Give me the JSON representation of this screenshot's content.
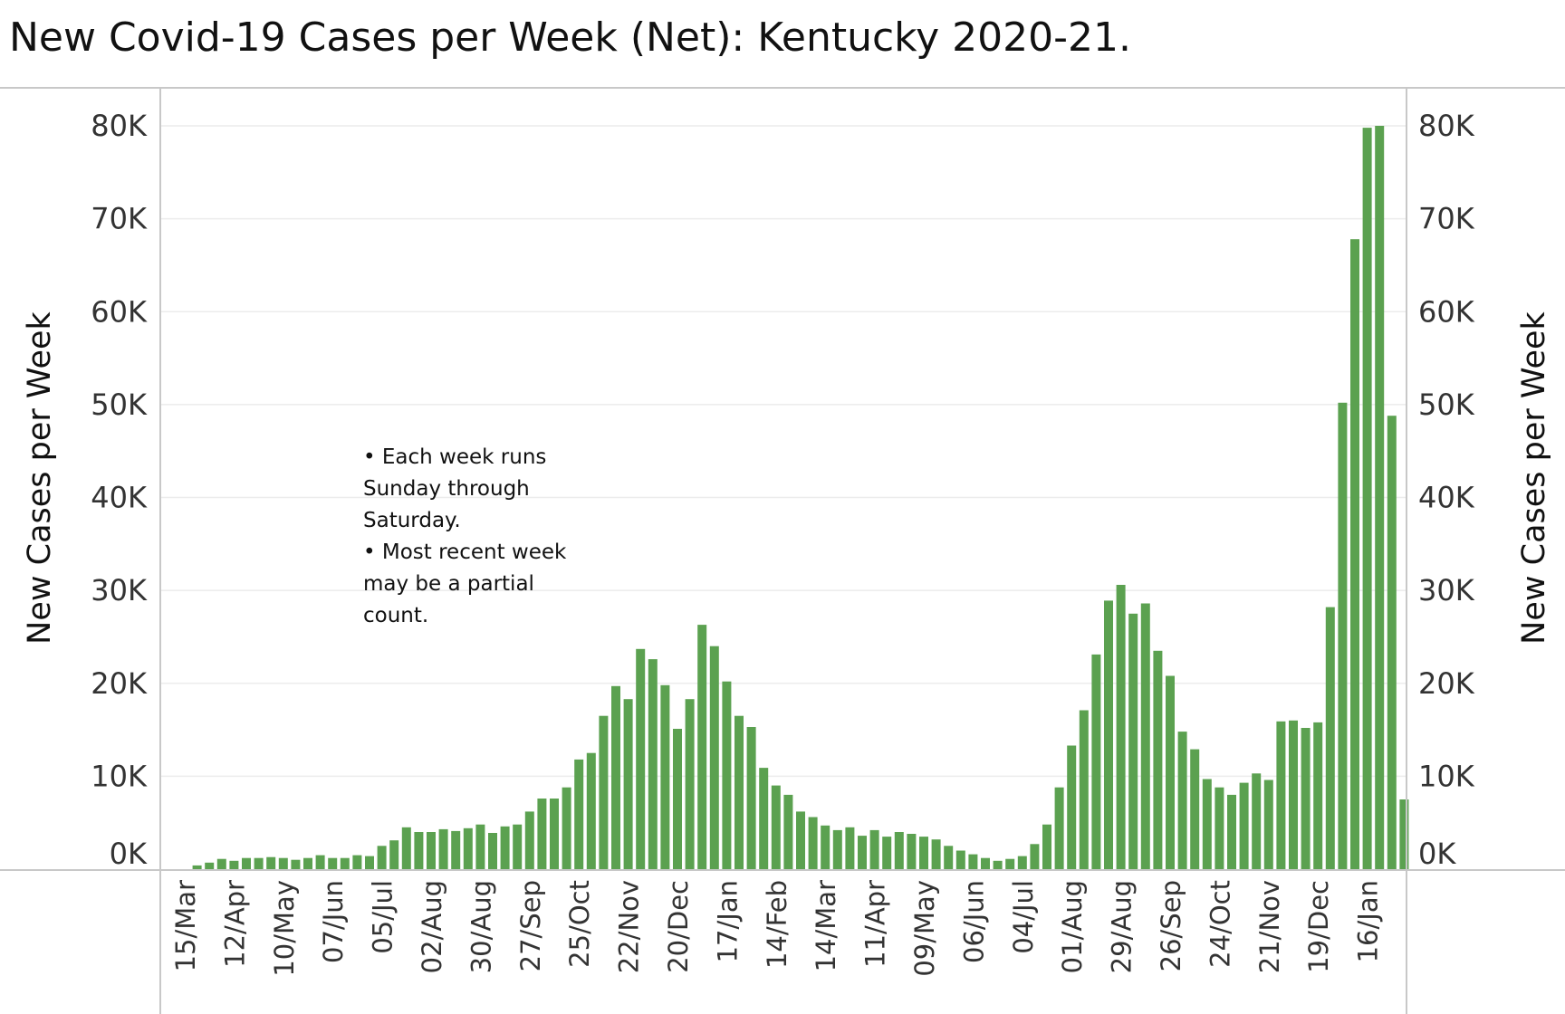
{
  "chart_data": {
    "type": "bar",
    "title": "New Covid-19 Cases per Week (Net):  Kentucky 2020-21.",
    "ylabel": "New Cases per Week",
    "ylabel_right": "New Cases per Week",
    "ylim": [
      0,
      80000
    ],
    "y_ticks": [
      "0K",
      "10K",
      "20K",
      "30K",
      "40K",
      "50K",
      "60K",
      "70K",
      "80K"
    ],
    "x_tick_labels": [
      "15/Mar",
      "12/Apr",
      "10/May",
      "07/Jun",
      "05/Jul",
      "02/Aug",
      "30/Aug",
      "27/Sep",
      "25/Oct",
      "22/Nov",
      "20/Dec",
      "17/Jan",
      "14/Feb",
      "14/Mar",
      "11/Apr",
      "09/May",
      "06/Jun",
      "04/Jul",
      "01/Aug",
      "29/Aug",
      "26/Sep",
      "24/Oct",
      "21/Nov",
      "19/Dec",
      "16/Jan"
    ],
    "bar_color": "#5ba150",
    "gridlines": true,
    "annotation": [
      "• Each week runs",
      "Sunday through",
      "Saturday.",
      "• Most recent week",
      "may be a partial",
      "count."
    ],
    "values": [
      0,
      400,
      700,
      1100,
      900,
      1200,
      1200,
      1300,
      1200,
      1000,
      1200,
      1500,
      1200,
      1200,
      1500,
      1400,
      2500,
      3100,
      4500,
      4000,
      4000,
      4300,
      4100,
      4400,
      4800,
      3900,
      4600,
      4800,
      6200,
      7600,
      7600,
      8800,
      11800,
      12500,
      16500,
      19700,
      18300,
      23700,
      22600,
      19800,
      15100,
      18300,
      26300,
      24000,
      20200,
      16500,
      15300,
      10900,
      9000,
      8000,
      6200,
      5600,
      4700,
      4200,
      4500,
      3600,
      4200,
      3500,
      4000,
      3800,
      3500,
      3200,
      2500,
      2000,
      1600,
      1200,
      900,
      1100,
      1400,
      2700,
      4800,
      8800,
      13300,
      17100,
      23100,
      28900,
      30600,
      27500,
      28600,
      23500,
      20800,
      14800,
      12900,
      9700,
      8800,
      8000,
      9300,
      10300,
      9600,
      15900,
      16000,
      15200,
      15800,
      28200,
      50200,
      67800,
      79800,
      80000,
      48800,
      7500
    ]
  }
}
